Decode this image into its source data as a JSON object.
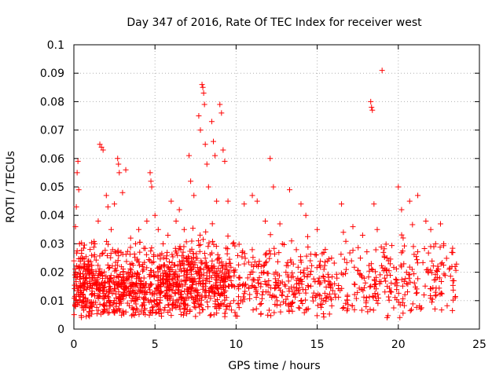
{
  "chart_data": {
    "type": "scatter",
    "title": "Day 347 of 2016, Rate Of TEC Index for receiver west",
    "xlabel": "GPS time / hours",
    "ylabel": "ROTI / TECUs",
    "xlim": [
      0,
      25
    ],
    "ylim": [
      0,
      0.1
    ],
    "x_ticks": [
      "0",
      "5",
      "10",
      "15",
      "20",
      "25"
    ],
    "y_ticks": [
      "0",
      "0.01",
      "0.02",
      "0.03",
      "0.04",
      "0.05",
      "0.06",
      "0.07",
      "0.08",
      "0.09",
      "0.1"
    ],
    "x_tick_values": [
      0,
      5,
      10,
      15,
      20,
      25
    ],
    "y_tick_values": [
      0,
      0.01,
      0.02,
      0.03,
      0.04,
      0.05,
      0.06,
      0.07,
      0.08,
      0.09,
      0.1
    ],
    "grid": true,
    "marker": "+",
    "color": "#ff0000",
    "series": [
      {
        "points": [
          [
            0.1,
            0.036
          ],
          [
            0.15,
            0.043
          ],
          [
            0.2,
            0.055
          ],
          [
            0.25,
            0.059
          ],
          [
            0.3,
            0.049
          ],
          [
            0.35,
            0.03
          ],
          [
            0.5,
            0.025
          ],
          [
            0.8,
            0.022
          ],
          [
            1.0,
            0.028
          ],
          [
            1.3,
            0.03
          ],
          [
            1.5,
            0.038
          ],
          [
            1.6,
            0.065
          ],
          [
            1.7,
            0.064
          ],
          [
            1.8,
            0.063
          ],
          [
            2.0,
            0.047
          ],
          [
            2.1,
            0.043
          ],
          [
            2.3,
            0.035
          ],
          [
            2.5,
            0.044
          ],
          [
            2.7,
            0.06
          ],
          [
            2.75,
            0.058
          ],
          [
            2.8,
            0.055
          ],
          [
            3.0,
            0.048
          ],
          [
            3.2,
            0.056
          ],
          [
            3.5,
            0.032
          ],
          [
            3.8,
            0.03
          ],
          [
            4.0,
            0.035
          ],
          [
            4.5,
            0.038
          ],
          [
            4.7,
            0.055
          ],
          [
            4.75,
            0.052
          ],
          [
            4.8,
            0.05
          ],
          [
            5.0,
            0.04
          ],
          [
            5.2,
            0.035
          ],
          [
            5.5,
            0.03
          ],
          [
            5.8,
            0.033
          ],
          [
            6.0,
            0.045
          ],
          [
            6.3,
            0.038
          ],
          [
            6.5,
            0.042
          ],
          [
            6.8,
            0.035
          ],
          [
            7.1,
            0.061
          ],
          [
            7.2,
            0.052
          ],
          [
            7.4,
            0.047
          ],
          [
            7.7,
            0.075
          ],
          [
            7.8,
            0.07
          ],
          [
            7.9,
            0.086
          ],
          [
            7.95,
            0.085
          ],
          [
            8.0,
            0.083
          ],
          [
            8.05,
            0.079
          ],
          [
            8.1,
            0.065
          ],
          [
            8.2,
            0.058
          ],
          [
            8.3,
            0.05
          ],
          [
            8.5,
            0.073
          ],
          [
            8.6,
            0.066
          ],
          [
            8.7,
            0.061
          ],
          [
            8.8,
            0.045
          ],
          [
            9.0,
            0.079
          ],
          [
            9.1,
            0.076
          ],
          [
            9.2,
            0.063
          ],
          [
            9.3,
            0.059
          ],
          [
            9.5,
            0.045
          ],
          [
            9.8,
            0.03
          ],
          [
            10.5,
            0.044
          ],
          [
            11.0,
            0.047
          ],
          [
            11.3,
            0.045
          ],
          [
            11.8,
            0.038
          ],
          [
            12.1,
            0.06
          ],
          [
            12.3,
            0.05
          ],
          [
            12.7,
            0.037
          ],
          [
            13.3,
            0.049
          ],
          [
            14.0,
            0.044
          ],
          [
            14.3,
            0.04
          ],
          [
            15.0,
            0.035
          ],
          [
            15.5,
            0.028
          ],
          [
            16.5,
            0.044
          ],
          [
            17.2,
            0.036
          ],
          [
            17.8,
            0.033
          ],
          [
            18.3,
            0.08
          ],
          [
            18.35,
            0.078
          ],
          [
            18.4,
            0.077
          ],
          [
            18.5,
            0.044
          ],
          [
            18.7,
            0.035
          ],
          [
            19.0,
            0.091
          ],
          [
            19.3,
            0.025
          ],
          [
            20.0,
            0.05
          ],
          [
            20.2,
            0.042
          ],
          [
            20.7,
            0.045
          ],
          [
            21.2,
            0.047
          ],
          [
            21.7,
            0.038
          ],
          [
            22.0,
            0.035
          ],
          [
            22.3,
            0.03
          ],
          [
            22.6,
            0.037
          ],
          [
            22.8,
            0.03
          ],
          [
            23.3,
            0.027
          ],
          [
            23.5,
            0.022
          ],
          [
            23.5,
            0.011
          ]
        ]
      }
    ]
  }
}
